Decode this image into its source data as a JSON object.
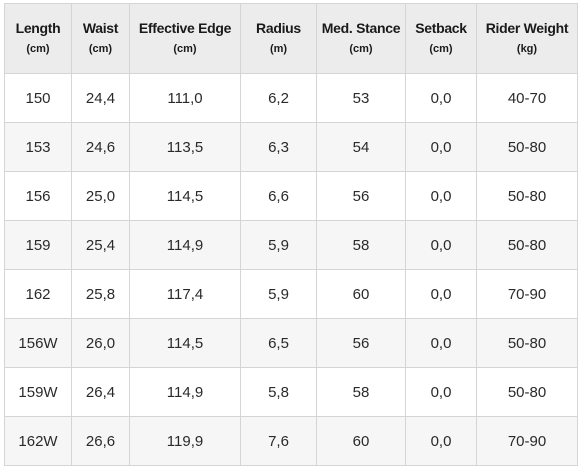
{
  "table": {
    "columns": [
      {
        "name": "Length",
        "unit": "(cm)"
      },
      {
        "name": "Waist",
        "unit": "(cm)"
      },
      {
        "name": "Effective Edge",
        "unit": "(cm)"
      },
      {
        "name": "Radius",
        "unit": "(m)"
      },
      {
        "name": "Med. Stance",
        "unit": "(cm)"
      },
      {
        "name": "Setback",
        "unit": "(cm)"
      },
      {
        "name": "Rider Weight",
        "unit": "(kg)"
      }
    ],
    "rows": [
      [
        "150",
        "24,4",
        "111,0",
        "6,2",
        "53",
        "0,0",
        "40-70"
      ],
      [
        "153",
        "24,6",
        "113,5",
        "6,3",
        "54",
        "0,0",
        "50-80"
      ],
      [
        "156",
        "25,0",
        "114,5",
        "6,6",
        "56",
        "0,0",
        "50-80"
      ],
      [
        "159",
        "25,4",
        "114,9",
        "5,9",
        "58",
        "0,0",
        "50-80"
      ],
      [
        "162",
        "25,8",
        "117,4",
        "5,9",
        "60",
        "0,0",
        "70-90"
      ],
      [
        "156W",
        "26,0",
        "114,5",
        "6,5",
        "56",
        "0,0",
        "50-80"
      ],
      [
        "159W",
        "26,4",
        "114,9",
        "5,8",
        "58",
        "0,0",
        "50-80"
      ],
      [
        "162W",
        "26,6",
        "119,9",
        "7,6",
        "60",
        "0,0",
        "70-90"
      ]
    ]
  }
}
